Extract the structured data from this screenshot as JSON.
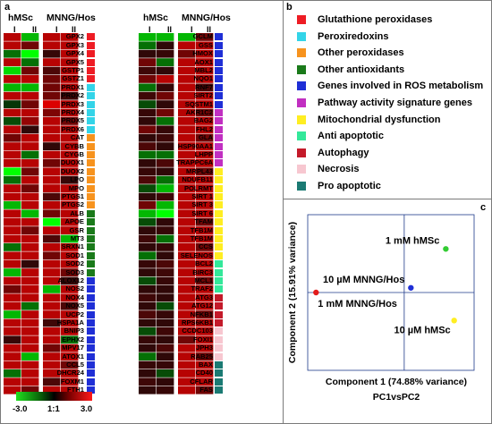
{
  "panel_a": {
    "label": "a",
    "col_group_1": "hMSc",
    "col_group_2": "MNNG/Hos",
    "replicate_labels": [
      "I",
      "II",
      "I",
      "II"
    ],
    "left_genes": [
      {
        "name": "GPX2",
        "cat": "gpx",
        "v": [
          2,
          -2,
          2,
          2
        ]
      },
      {
        "name": "GPX3",
        "cat": "gpx",
        "v": [
          2,
          1,
          2,
          2
        ]
      },
      {
        "name": "GPX4",
        "cat": "gpx",
        "v": [
          -1,
          -3,
          0.2,
          2
        ]
      },
      {
        "name": "GPX5",
        "cat": "gpx",
        "v": [
          2,
          -1,
          2,
          2
        ]
      },
      {
        "name": "GSTP1",
        "cat": "gpx",
        "v": [
          -2.5,
          1,
          0.5,
          2
        ]
      },
      {
        "name": "GSTZ1",
        "cat": "gpx",
        "v": [
          2,
          2,
          1,
          2
        ]
      },
      {
        "name": "PRDX1",
        "cat": "prdx",
        "v": [
          -2,
          -2,
          1,
          2
        ]
      },
      {
        "name": "PRDX2",
        "cat": "prdx",
        "v": [
          2,
          2,
          1,
          0.3
        ]
      },
      {
        "name": "PRDX3",
        "cat": "prdx",
        "v": [
          -0.2,
          1,
          2.5,
          2
        ]
      },
      {
        "name": "PRDX4",
        "cat": "prdx",
        "v": [
          2,
          2,
          1.2,
          2
        ]
      },
      {
        "name": "PRDX5",
        "cat": "prdx",
        "v": [
          -0.5,
          1.5,
          2,
          1
        ]
      },
      {
        "name": "PRDX6",
        "cat": "prdx",
        "v": [
          2,
          0.1,
          2,
          2
        ]
      },
      {
        "name": "CAT",
        "cat": "operox",
        "v": [
          1,
          2,
          2,
          2
        ]
      },
      {
        "name": "CYBB",
        "cat": "operox",
        "v": [
          2,
          2,
          0.1,
          2
        ]
      },
      {
        "name": "CYGB",
        "cat": "operox",
        "v": [
          2,
          -1,
          2,
          2
        ]
      },
      {
        "name": "DUOX1",
        "cat": "operox",
        "v": [
          2,
          2,
          1,
          2
        ]
      },
      {
        "name": "DUOX2",
        "cat": "operox",
        "v": [
          -3,
          1,
          2,
          2
        ]
      },
      {
        "name": "LPO",
        "cat": "operox",
        "v": [
          -1,
          2,
          2,
          0.2
        ]
      },
      {
        "name": "MPO",
        "cat": "operox",
        "v": [
          2,
          1,
          2,
          2
        ]
      },
      {
        "name": "PTGS1",
        "cat": "operox",
        "v": [
          2,
          2,
          0.5,
          2
        ]
      },
      {
        "name": "PTGS2",
        "cat": "operox",
        "v": [
          -2,
          2,
          2,
          2
        ]
      },
      {
        "name": "ALB",
        "cat": "antiox",
        "v": [
          2,
          -2,
          1,
          2
        ]
      },
      {
        "name": "APOE",
        "cat": "antiox",
        "v": [
          2,
          2,
          -3,
          2
        ]
      },
      {
        "name": "GSR",
        "cat": "antiox",
        "v": [
          2,
          1,
          2,
          2
        ]
      },
      {
        "name": "MT3",
        "cat": "antiox",
        "v": [
          2,
          2,
          0.5,
          -2
        ]
      },
      {
        "name": "SRXN1",
        "cat": "antiox",
        "v": [
          -1,
          2,
          2,
          2
        ]
      },
      {
        "name": "SOD1",
        "cat": "antiox",
        "v": [
          2,
          2,
          1,
          2
        ]
      },
      {
        "name": "SOD2",
        "cat": "antiox",
        "v": [
          2,
          0.1,
          2,
          2
        ]
      },
      {
        "name": "SOD3",
        "cat": "antiox",
        "v": [
          -2,
          2,
          2,
          1
        ]
      },
      {
        "name": "ALOX12",
        "cat": "ros",
        "v": [
          2,
          2,
          2,
          0.2
        ]
      },
      {
        "name": "NOS2",
        "cat": "ros",
        "v": [
          1,
          2,
          -2,
          2
        ]
      },
      {
        "name": "NOX4",
        "cat": "ros",
        "v": [
          2,
          2,
          2,
          2
        ]
      },
      {
        "name": "NOX5",
        "cat": "ros",
        "v": [
          2,
          -1,
          2,
          0.5
        ]
      },
      {
        "name": "UCP2",
        "cat": "ros",
        "v": [
          -2,
          2,
          2,
          2
        ]
      },
      {
        "name": "HSPA1A",
        "cat": "ros",
        "v": [
          2,
          2,
          0.3,
          2
        ]
      },
      {
        "name": "BNIP3",
        "cat": "ros",
        "v": [
          2,
          2,
          2,
          2
        ]
      },
      {
        "name": "EPHX2",
        "cat": "ros",
        "v": [
          0.2,
          2,
          2,
          -1
        ]
      },
      {
        "name": "MPV17",
        "cat": "ros",
        "v": [
          2,
          2,
          1,
          2
        ]
      },
      {
        "name": "ATOX1",
        "cat": "ros",
        "v": [
          2,
          -2,
          2,
          2
        ]
      },
      {
        "name": "CCL5",
        "cat": "ros",
        "v": [
          2,
          2,
          2,
          1
        ]
      },
      {
        "name": "DHCR24",
        "cat": "ros",
        "v": [
          -1,
          2,
          2,
          2
        ]
      },
      {
        "name": "FOXM1",
        "cat": "ros",
        "v": [
          2,
          2,
          0.5,
          2
        ]
      },
      {
        "name": "FTH1",
        "cat": "ros",
        "v": [
          2,
          1,
          2,
          2
        ]
      }
    ],
    "right_genes": [
      {
        "name": "GCLM",
        "cat": "ros",
        "v": [
          -2,
          -2,
          -2,
          1
        ]
      },
      {
        "name": "GSS",
        "cat": "ros",
        "v": [
          -1,
          0.1,
          2,
          2
        ]
      },
      {
        "name": "HMOX",
        "cat": "ros",
        "v": [
          0.1,
          0.2,
          1,
          2
        ]
      },
      {
        "name": "AOX1",
        "cat": "ros",
        "v": [
          1,
          -1,
          2,
          2
        ]
      },
      {
        "name": "MBL2",
        "cat": "ros",
        "v": [
          0.3,
          0.1,
          2,
          2
        ]
      },
      {
        "name": "NQO1",
        "cat": "ros",
        "v": [
          1,
          2,
          2,
          2
        ]
      },
      {
        "name": "RNF7",
        "cat": "ros",
        "v": [
          -1,
          0.2,
          2,
          0.5
        ]
      },
      {
        "name": "SIRT2",
        "cat": "ros",
        "v": [
          0.3,
          1,
          2,
          2
        ]
      },
      {
        "name": "SQSTM1",
        "cat": "ros",
        "v": [
          -0.5,
          0.1,
          2,
          2
        ]
      },
      {
        "name": "AKR1C2",
        "cat": "pathway",
        "v": [
          0.2,
          1,
          2,
          1
        ]
      },
      {
        "name": "BAG2",
        "cat": "pathway",
        "v": [
          0.1,
          -1,
          2,
          2
        ]
      },
      {
        "name": "FHL2",
        "cat": "pathway",
        "v": [
          1,
          0.2,
          2,
          2
        ]
      },
      {
        "name": "GLA",
        "cat": "pathway",
        "v": [
          0.1,
          0.3,
          2,
          1
        ]
      },
      {
        "name": "HSP90AA1",
        "cat": "pathway",
        "v": [
          0.5,
          0.1,
          2,
          2
        ]
      },
      {
        "name": "LHPP",
        "cat": "pathway",
        "v": [
          -1,
          -1,
          2,
          2
        ]
      },
      {
        "name": "TRAPPC6A",
        "cat": "pathway",
        "v": [
          0.1,
          0.5,
          2,
          2
        ]
      },
      {
        "name": "MRPL43",
        "cat": "mito",
        "v": [
          0.2,
          0.1,
          2,
          1
        ]
      },
      {
        "name": "NDUFB11",
        "cat": "mito",
        "v": [
          0.5,
          -1,
          2,
          2
        ]
      },
      {
        "name": "POLRMT",
        "cat": "mito",
        "v": [
          -0.5,
          -2,
          2,
          2
        ]
      },
      {
        "name": "SIRT 1",
        "cat": "mito",
        "v": [
          0.1,
          0.3,
          2,
          2
        ]
      },
      {
        "name": "SIRT 3",
        "cat": "mito",
        "v": [
          1,
          -2,
          2,
          2
        ]
      },
      {
        "name": "SIRT 6",
        "cat": "mito",
        "v": [
          -2,
          -3,
          2,
          2
        ]
      },
      {
        "name": "TFAM",
        "cat": "mito",
        "v": [
          -0.5,
          0.1,
          2,
          1
        ]
      },
      {
        "name": "TFB1M",
        "cat": "mito",
        "v": [
          0.1,
          0.2,
          2,
          2
        ]
      },
      {
        "name": "TFB1M",
        "cat": "mito",
        "v": [
          0.3,
          -1,
          2,
          2
        ]
      },
      {
        "name": "CCS",
        "cat": "mito",
        "v": [
          0.1,
          0.2,
          2,
          1
        ]
      },
      {
        "name": "SELENOS",
        "cat": "mito",
        "v": [
          -1,
          0.1,
          2,
          2
        ]
      },
      {
        "name": "BCL2",
        "cat": "antiapop",
        "v": [
          0.2,
          0.5,
          2,
          2
        ]
      },
      {
        "name": "BIRC3",
        "cat": "antiapop",
        "v": [
          0.1,
          0.3,
          2,
          2
        ]
      },
      {
        "name": "MCL1",
        "cat": "antiapop",
        "v": [
          -0.5,
          0.2,
          2,
          1
        ]
      },
      {
        "name": "TRAF2",
        "cat": "antiapop",
        "v": [
          0.1,
          0.1,
          2,
          2
        ]
      },
      {
        "name": "ATG3",
        "cat": "autoph",
        "v": [
          0.3,
          0.1,
          2,
          2
        ]
      },
      {
        "name": "ATG12",
        "cat": "autoph",
        "v": [
          0.1,
          -0.5,
          2,
          2
        ]
      },
      {
        "name": "NFKB1",
        "cat": "autoph",
        "v": [
          0.5,
          0.2,
          2,
          1
        ]
      },
      {
        "name": "RPS6KB1",
        "cat": "autoph",
        "v": [
          0.1,
          0.1,
          2,
          2
        ]
      },
      {
        "name": "CCDC103",
        "cat": "necro",
        "v": [
          -0.5,
          0.3,
          2,
          2
        ]
      },
      {
        "name": "FOXI1",
        "cat": "necro",
        "v": [
          0.2,
          0.1,
          1,
          2
        ]
      },
      {
        "name": "JPH3",
        "cat": "necro",
        "v": [
          0.1,
          0.5,
          2,
          2
        ]
      },
      {
        "name": "RAB25",
        "cat": "necro",
        "v": [
          -1,
          0.1,
          2,
          1
        ]
      },
      {
        "name": "BAX",
        "cat": "proapop",
        "v": [
          0.2,
          0.2,
          2,
          2
        ]
      },
      {
        "name": "CD40",
        "cat": "proapop",
        "v": [
          0.1,
          -0.5,
          2,
          2
        ]
      },
      {
        "name": "CFLAR",
        "cat": "proapop",
        "v": [
          0.3,
          0.1,
          2,
          2
        ]
      },
      {
        "name": "FAS",
        "cat": "proapop",
        "v": [
          0.1,
          0.2,
          2,
          1
        ]
      }
    ],
    "scale_labels": [
      "-3.0",
      "1:1",
      "3.0"
    ]
  },
  "panel_b": {
    "label": "b",
    "items": [
      {
        "key": "gpx",
        "label": "Glutathione peroxidases",
        "color": "#ee1c24"
      },
      {
        "key": "prdx",
        "label": "Peroxiredoxins",
        "color": "#33d4e8"
      },
      {
        "key": "operox",
        "label": "Other peroxidases",
        "color": "#f7931e"
      },
      {
        "key": "antiox",
        "label": "Other antioxidants",
        "color": "#1a7a1a"
      },
      {
        "key": "ros",
        "label": "Genes involved in ROS metabolism",
        "color": "#1f2fd6"
      },
      {
        "key": "pathway",
        "label": "Pathway activity signature genes",
        "color": "#c12fc1"
      },
      {
        "key": "mito",
        "label": "Mitochondrial dysfunction",
        "color": "#ffee22"
      },
      {
        "key": "antiapop",
        "label": "Anti apoptotic",
        "color": "#33e89a"
      },
      {
        "key": "autoph",
        "label": "Autophagy",
        "color": "#c41a2a"
      },
      {
        "key": "necro",
        "label": "Necrosis",
        "color": "#f7c7d0"
      },
      {
        "key": "proapop",
        "label": "Pro apoptotic",
        "color": "#1b7a73"
      }
    ]
  },
  "panel_c": {
    "label": "c",
    "xlabel": "Component 1 (74.88% variance)",
    "ylabel": "Component 2 (15.91% variance)",
    "subtitle": "PC1vsPC2",
    "points": [
      {
        "label": "1 mM hMSc",
        "x": 0.83,
        "y": 0.78,
        "color": "#33cc33"
      },
      {
        "label": "10 µM MNNG/Hos",
        "x": 0.62,
        "y": 0.53,
        "color": "#1f2fd6"
      },
      {
        "label": "1 mM MNNG/Hos",
        "x": 0.05,
        "y": 0.5,
        "color": "#e31b1b"
      },
      {
        "label": "10 µM hMSc",
        "x": 0.88,
        "y": 0.32,
        "color": "#ffee22"
      }
    ],
    "label_anchor": {
      "1 mM hMSc": "left",
      "10 µM MNNG/Hos": "left",
      "1 mM MNNG/Hos": "below-right",
      "10 µM hMSc": "below-left"
    }
  }
}
